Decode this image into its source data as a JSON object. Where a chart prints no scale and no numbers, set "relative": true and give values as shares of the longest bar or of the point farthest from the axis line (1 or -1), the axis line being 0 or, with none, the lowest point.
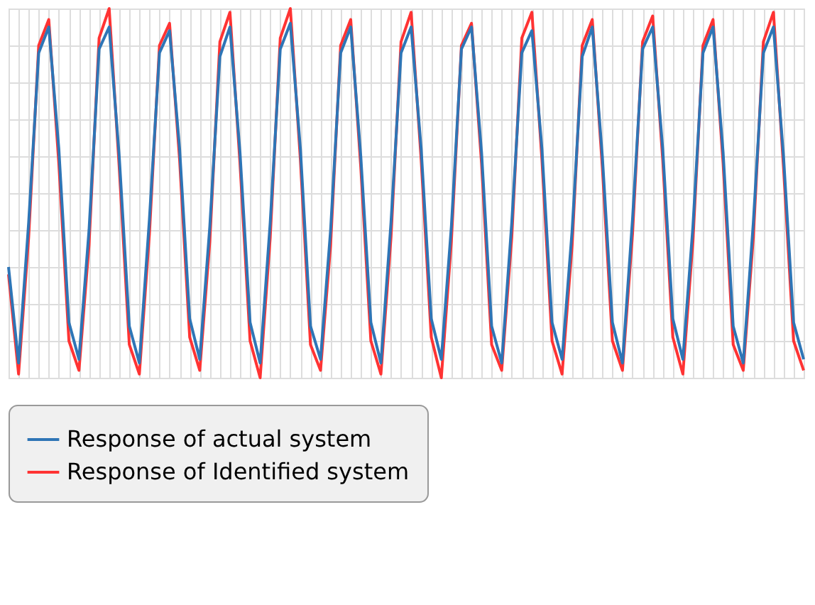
{
  "chart_data": {
    "type": "line",
    "relative": true,
    "grid": true,
    "legend": "bottom",
    "tick_labels": false,
    "line_style": "solid",
    "marker": "none",
    "categories": [
      null,
      null,
      null,
      null,
      null,
      null,
      null,
      null,
      null,
      null,
      null,
      null,
      null,
      null,
      null,
      null,
      null,
      null,
      null,
      null,
      null,
      null,
      null,
      null,
      null,
      null,
      null,
      null,
      null,
      null,
      null,
      null,
      null,
      null,
      null,
      null,
      null,
      null,
      null,
      null,
      null,
      null,
      null,
      null,
      null,
      null,
      null,
      null,
      null,
      null,
      null,
      null,
      null,
      null,
      null,
      null,
      null,
      null,
      null,
      null,
      null,
      null,
      null,
      null,
      null,
      null,
      null,
      null,
      null,
      null,
      null,
      null,
      null,
      null,
      null,
      null,
      null,
      null,
      null,
      null
    ],
    "series": [
      {
        "name": "Response of actual system",
        "color": "#2e75b6",
        "values": [
          0.3,
          0.04,
          0.42,
          0.88,
          0.95,
          0.62,
          0.15,
          0.05,
          0.4,
          0.89,
          0.95,
          0.6,
          0.14,
          0.04,
          0.43,
          0.88,
          0.94,
          0.62,
          0.16,
          0.05,
          0.41,
          0.87,
          0.95,
          0.61,
          0.15,
          0.04,
          0.42,
          0.89,
          0.96,
          0.62,
          0.14,
          0.05,
          0.4,
          0.88,
          0.95,
          0.6,
          0.15,
          0.04,
          0.42,
          0.88,
          0.95,
          0.62,
          0.16,
          0.05,
          0.41,
          0.89,
          0.95,
          0.61,
          0.14,
          0.04,
          0.42,
          0.88,
          0.94,
          0.62,
          0.15,
          0.05,
          0.4,
          0.87,
          0.95,
          0.6,
          0.15,
          0.04,
          0.43,
          0.89,
          0.95,
          0.62,
          0.16,
          0.05,
          0.41,
          0.88,
          0.95,
          0.61,
          0.14,
          0.04,
          0.42,
          0.88,
          0.95,
          0.6,
          0.15,
          0.05
        ]
      },
      {
        "name": "Response of Identified system",
        "color": "#ff3333",
        "values": [
          0.28,
          0.01,
          0.38,
          0.9,
          0.97,
          0.58,
          0.1,
          0.02,
          0.36,
          0.92,
          1.0,
          0.57,
          0.09,
          0.01,
          0.39,
          0.9,
          0.96,
          0.59,
          0.11,
          0.02,
          0.37,
          0.91,
          0.99,
          0.58,
          0.1,
          0.0,
          0.38,
          0.92,
          1.0,
          0.59,
          0.09,
          0.02,
          0.36,
          0.9,
          0.97,
          0.57,
          0.1,
          0.01,
          0.38,
          0.91,
          0.99,
          0.59,
          0.11,
          0.0,
          0.37,
          0.9,
          0.96,
          0.58,
          0.09,
          0.02,
          0.38,
          0.92,
          0.99,
          0.59,
          0.1,
          0.01,
          0.36,
          0.9,
          0.97,
          0.57,
          0.1,
          0.02,
          0.39,
          0.91,
          0.98,
          0.59,
          0.11,
          0.01,
          0.37,
          0.9,
          0.97,
          0.58,
          0.09,
          0.02,
          0.38,
          0.91,
          0.99,
          0.57,
          0.1,
          0.02
        ]
      }
    ]
  }
}
